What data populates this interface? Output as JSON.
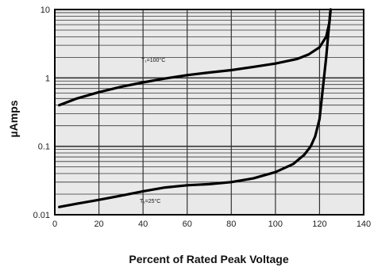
{
  "chart_data": {
    "type": "line",
    "title": "",
    "xlabel": "Percent of Rated Peak Voltage",
    "ylabel": "µAmps",
    "x_scale": "linear",
    "y_scale": "log",
    "xlim": [
      0,
      140
    ],
    "ylim": [
      0.01,
      10
    ],
    "x_ticks": [
      "0",
      "20",
      "40",
      "60",
      "80",
      "100",
      "120",
      "140"
    ],
    "y_ticks": [
      "0.01",
      "0.1",
      "1",
      "10"
    ],
    "grid": true,
    "series": [
      {
        "name": "T₁=100°C",
        "x": [
          2,
          10,
          20,
          30,
          40,
          50,
          60,
          70,
          80,
          90,
          100,
          110,
          115,
          120,
          123,
          124.5,
          125
        ],
        "y": [
          0.4,
          0.5,
          0.62,
          0.74,
          0.86,
          0.98,
          1.1,
          1.2,
          1.3,
          1.45,
          1.62,
          1.9,
          2.2,
          2.8,
          4.0,
          6.5,
          10
        ]
      },
      {
        "name": "T₁=25°C",
        "x": [
          2,
          10,
          20,
          30,
          40,
          50,
          60,
          70,
          80,
          90,
          100,
          108,
          113,
          116,
          118,
          120,
          121,
          122,
          123,
          124,
          125
        ],
        "y": [
          0.013,
          0.0145,
          0.0165,
          0.019,
          0.022,
          0.025,
          0.027,
          0.028,
          0.03,
          0.034,
          0.042,
          0.055,
          0.075,
          0.1,
          0.14,
          0.25,
          0.5,
          1.0,
          2.0,
          4.5,
          10
        ]
      }
    ]
  }
}
